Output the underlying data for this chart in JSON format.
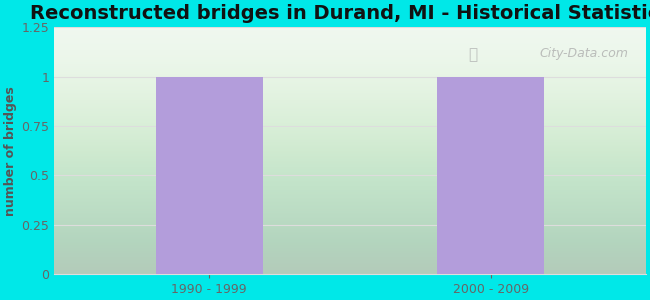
{
  "title": "Reconstructed bridges in Durand, MI - Historical Statistics",
  "categories": [
    "1990 - 1999",
    "2000 - 2009"
  ],
  "values": [
    1,
    1
  ],
  "bar_color": "#b39ddb",
  "ylabel": "number of bridges",
  "ylim": [
    0,
    1.25
  ],
  "yticks": [
    0,
    0.25,
    0.5,
    0.75,
    1,
    1.25
  ],
  "background_color": "#00e8e8",
  "plot_bg_top": "#e8f5e9",
  "plot_bg_bottom": "#f5fff5",
  "title_fontsize": 14,
  "label_fontsize": 9,
  "tick_fontsize": 9,
  "bar_width": 0.38,
  "watermark": "City-Data.com",
  "ylabel_color": "#555555",
  "tick_color": "#666666",
  "title_color": "#111111",
  "grid_color": "#dddddd"
}
